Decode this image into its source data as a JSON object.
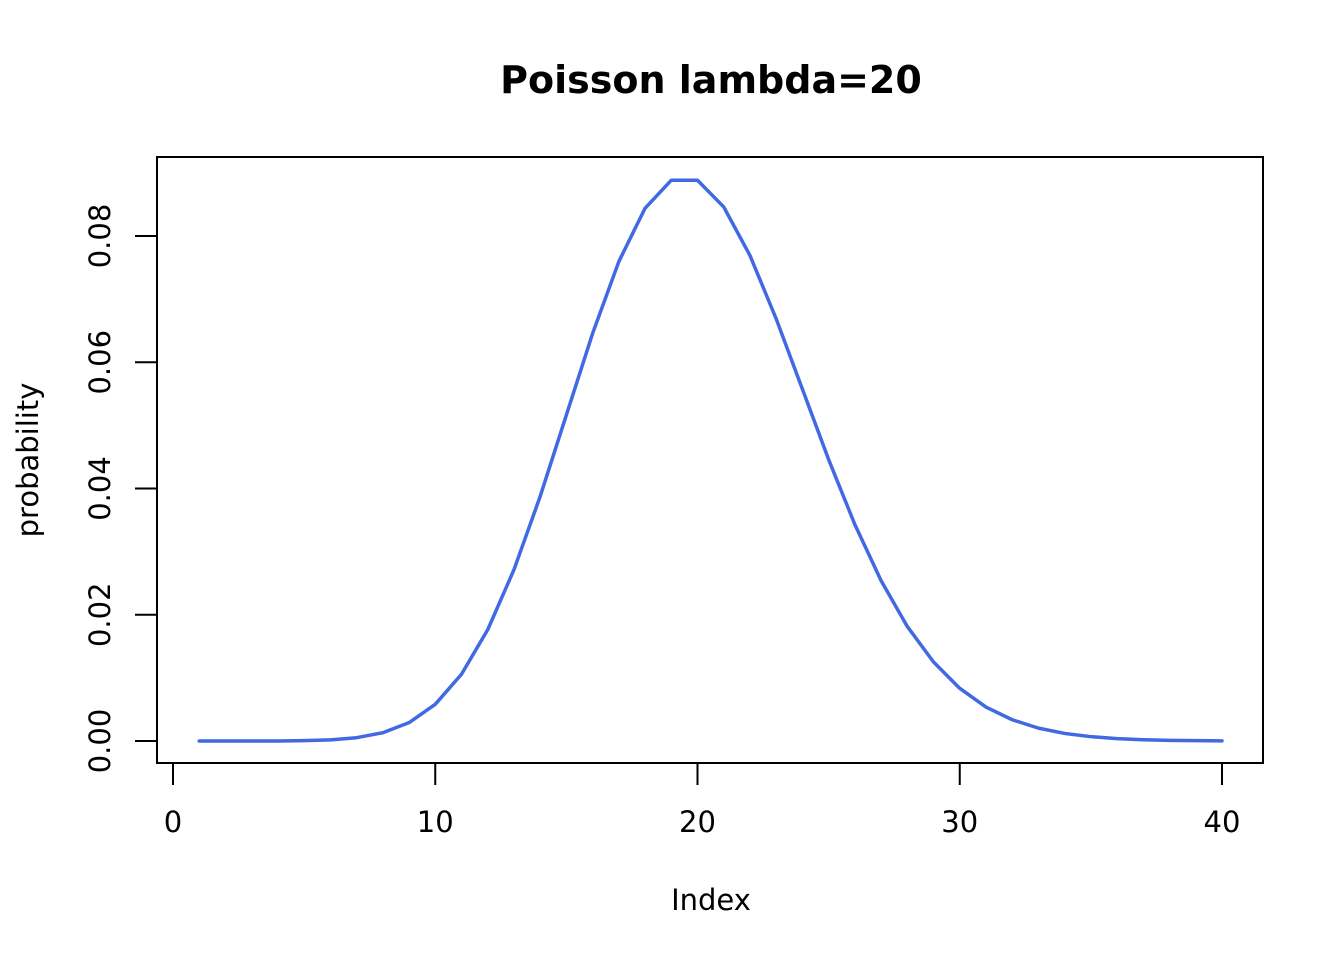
{
  "chart_data": {
    "type": "line",
    "title": "Poisson lambda=20",
    "xlabel": "Index",
    "ylabel": "probability",
    "xlim": [
      0,
      40
    ],
    "ylim": [
      0,
      0.09
    ],
    "grid": false,
    "x_ticks": [
      0,
      10,
      20,
      30,
      40
    ],
    "y_ticks": [
      0.0,
      0.02,
      0.04,
      0.06,
      0.08
    ],
    "x_tick_labels": [
      "0",
      "10",
      "20",
      "30",
      "40"
    ],
    "y_tick_labels": [
      "0.00",
      "0.02",
      "0.04",
      "0.06",
      "0.08"
    ],
    "line_color": "#4169E1",
    "series": [
      {
        "x": [
          1,
          2,
          3,
          4,
          5,
          6,
          7,
          8,
          9,
          10,
          11,
          12,
          13,
          14,
          15,
          16,
          17,
          18,
          19,
          20,
          21,
          22,
          23,
          24,
          25,
          26,
          27,
          28,
          29,
          30,
          31,
          32,
          33,
          34,
          35,
          36,
          37,
          38,
          39,
          40
        ],
        "values": [
          0.0,
          0.0,
          1e-06,
          5e-06,
          5.5e-05,
          0.000183,
          0.000523,
          0.001309,
          0.002908,
          0.005816,
          0.010575,
          0.017625,
          0.027116,
          0.038737,
          0.051649,
          0.064561,
          0.075954,
          0.084394,
          0.088835,
          0.088835,
          0.084605,
          0.076914,
          0.066882,
          0.055735,
          0.044588,
          0.034298,
          0.025406,
          0.018147,
          0.012515,
          0.008344,
          0.005383,
          0.003364,
          0.002039,
          0.001199,
          0.000685,
          0.000381,
          0.000206,
          0.000108,
          5.6e-05,
          2.8e-05
        ]
      }
    ]
  }
}
